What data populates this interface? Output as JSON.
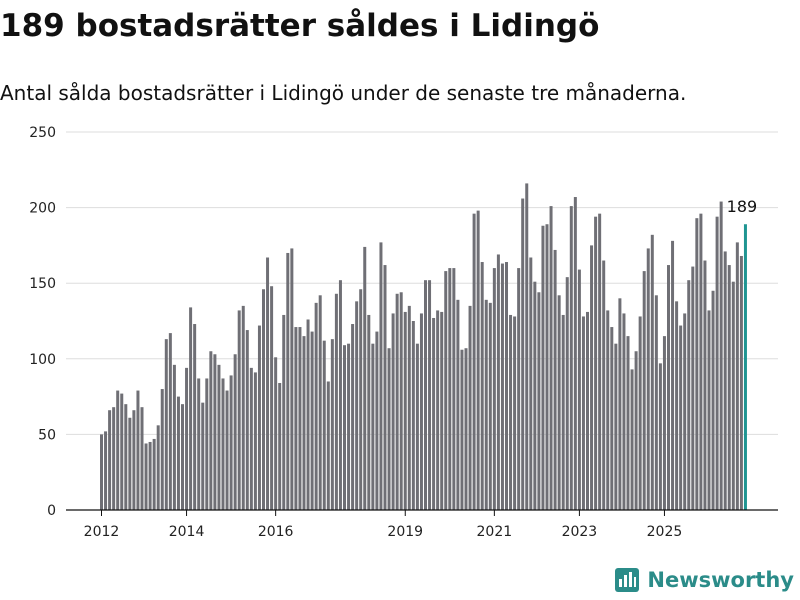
{
  "header": {
    "title": "189 bostadsrätter såldes i Lidingö",
    "subtitle": "Antal sålda bostadsrätter i Lidingö under de senaste tre månaderna."
  },
  "brand": {
    "name": "Newsworthy",
    "icon": "newsworthy-logo-icon",
    "color": "#2b8c89"
  },
  "chart_data": {
    "type": "bar",
    "title": "",
    "xlabel": "",
    "ylabel": "",
    "ylim": [
      0,
      250
    ],
    "yticks": [
      0,
      50,
      100,
      150,
      200,
      250
    ],
    "grid": "horizontal",
    "colors": {
      "bar": "#6f6f75",
      "highlight": "#1f9592",
      "grid": "#dddddd",
      "axis": "#111111"
    },
    "x_tick_labels": [
      {
        "label": "2012",
        "index": 0
      },
      {
        "label": "2014",
        "index": 21
      },
      {
        "label": "2016",
        "index": 43
      },
      {
        "label": "2019",
        "index": 75
      },
      {
        "label": "2021",
        "index": 97
      },
      {
        "label": "2023",
        "index": 118
      },
      {
        "label": "2025",
        "index": 139
      }
    ],
    "highlight_label": "189",
    "values": [
      50,
      52,
      66,
      68,
      79,
      77,
      70,
      61,
      66,
      79,
      68,
      44,
      45,
      47,
      56,
      80,
      113,
      117,
      96,
      75,
      70,
      94,
      134,
      123,
      87,
      71,
      87,
      105,
      103,
      96,
      87,
      79,
      89,
      103,
      132,
      135,
      119,
      94,
      91,
      122,
      146,
      167,
      148,
      101,
      84,
      129,
      170,
      173,
      121,
      121,
      115,
      126,
      118,
      137,
      142,
      112,
      85,
      113,
      143,
      152,
      109,
      110,
      123,
      138,
      146,
      174,
      129,
      110,
      118,
      177,
      162,
      107,
      130,
      143,
      144,
      131,
      135,
      125,
      110,
      130,
      152,
      152,
      127,
      132,
      131,
      158,
      160,
      160,
      139,
      106,
      107,
      135,
      196,
      198,
      164,
      139,
      137,
      160,
      169,
      163,
      164,
      129,
      128,
      160,
      206,
      216,
      167,
      151,
      144,
      188,
      189,
      201,
      172,
      142,
      129,
      154,
      201,
      207,
      159,
      128,
      131,
      175,
      194,
      196,
      165,
      132,
      121,
      110,
      140,
      130,
      115,
      93,
      105,
      128,
      158,
      173,
      182,
      142,
      97,
      115,
      162,
      178,
      138,
      122,
      130,
      152,
      161,
      193,
      196,
      165,
      132,
      145,
      194,
      204,
      171,
      162,
      151,
      177,
      168,
      189
    ]
  }
}
